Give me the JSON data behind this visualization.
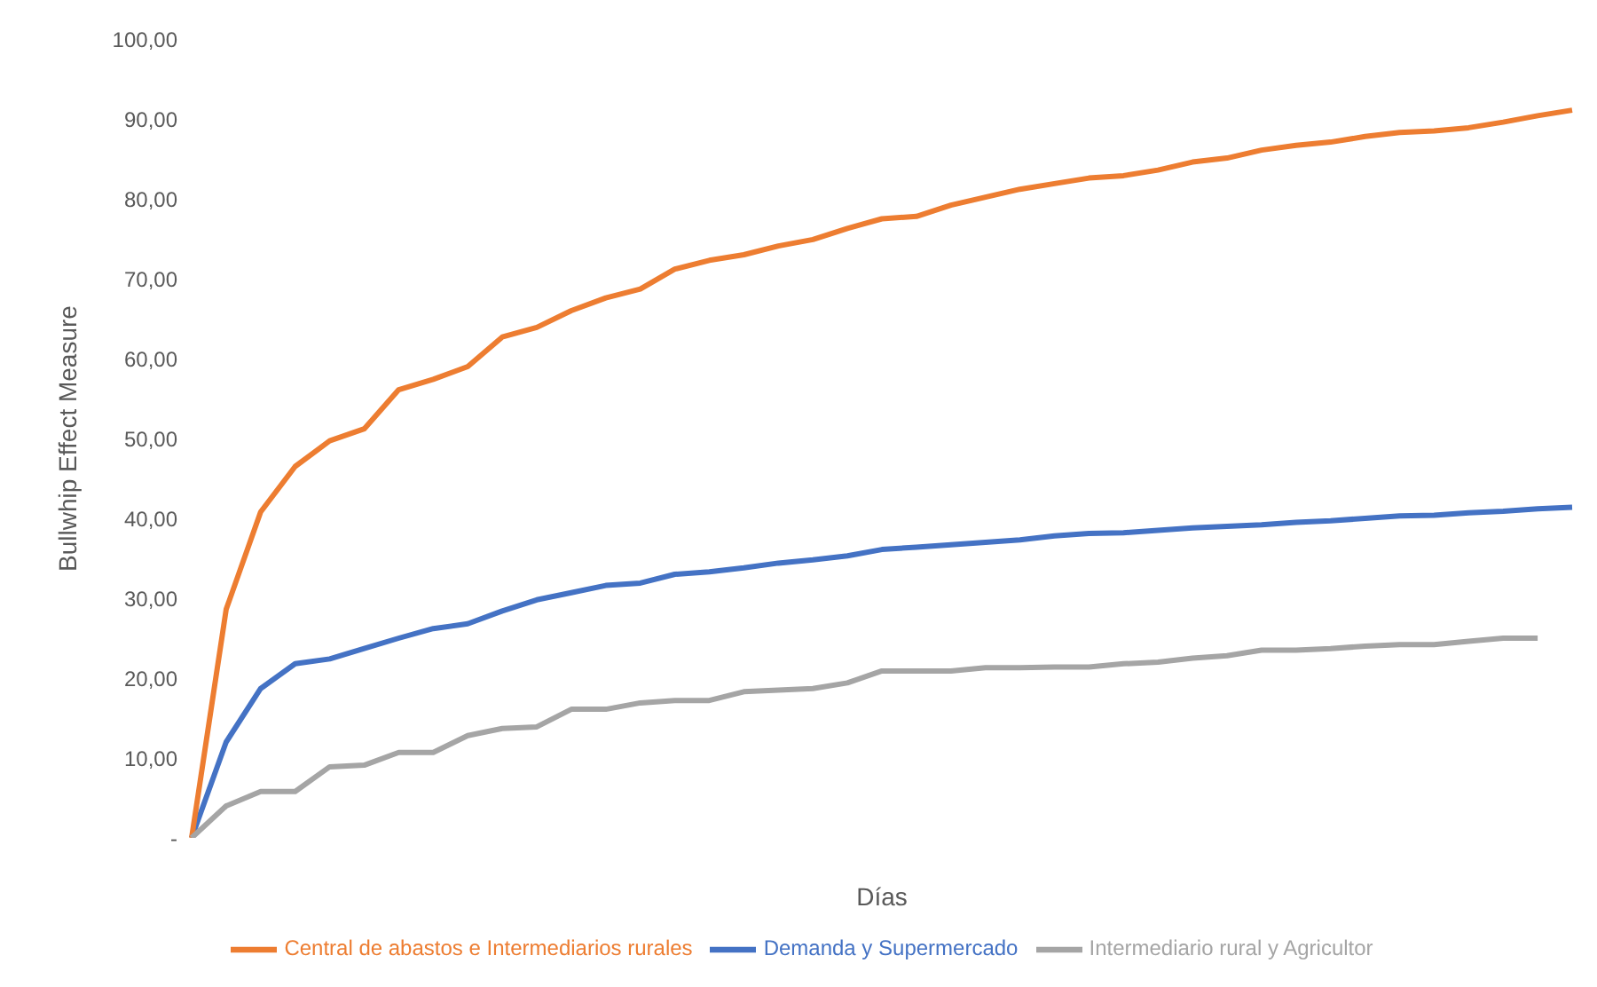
{
  "chart_data": {
    "type": "line",
    "xlabel": "Días",
    "ylabel": "Bullwhip Effect Measure",
    "categories": [
      null,
      null,
      null,
      null,
      null,
      null,
      null,
      null,
      null,
      null,
      null,
      null,
      null,
      null,
      null,
      null,
      null,
      null,
      null,
      null,
      null,
      null,
      null,
      null,
      null,
      null,
      null,
      null,
      null,
      null,
      null,
      null,
      null,
      null,
      null,
      null,
      null,
      null,
      null,
      null,
      null
    ],
    "ylim": [
      0,
      100
    ],
    "yticks": [
      {
        "value": 0,
        "label": "-"
      },
      {
        "value": 10,
        "label": "10,00"
      },
      {
        "value": 20,
        "label": "20,00"
      },
      {
        "value": 30,
        "label": "30,00"
      },
      {
        "value": 40,
        "label": "40,00"
      },
      {
        "value": 50,
        "label": "50,00"
      },
      {
        "value": 60,
        "label": "60,00"
      },
      {
        "value": 70,
        "label": "70,00"
      },
      {
        "value": 80,
        "label": "80,00"
      },
      {
        "value": 90,
        "label": "90,00"
      },
      {
        "value": 100,
        "label": "100,00"
      }
    ],
    "grid": false,
    "legend": "bottom",
    "marker": "none",
    "line_style": "solid",
    "tick_labels": "y",
    "series": [
      {
        "name": "Demanda y Supermercado",
        "color": "#4472c4",
        "values": [
          0,
          12,
          18.7,
          21.8,
          22.4,
          23.7,
          25,
          26.2,
          26.8,
          28.4,
          29.8,
          30.7,
          31.6,
          31.9,
          33,
          33.3,
          33.8,
          34.4,
          34.8,
          35.3,
          36.1,
          36.4,
          36.7,
          37,
          37.3,
          37.8,
          38.1,
          38.2,
          38.5,
          38.8,
          39,
          39.2,
          39.5,
          39.7,
          40,
          40.3,
          40.4,
          40.7,
          40.9,
          41.2,
          41.4
        ]
      },
      {
        "name": "Central de abastos e Intermediarios rurales",
        "color": "#ed7d31",
        "values": [
          0,
          28.6,
          40.8,
          46.5,
          49.7,
          51.2,
          56.1,
          57.4,
          59,
          62.7,
          63.9,
          66,
          67.6,
          68.7,
          71.2,
          72.3,
          73,
          74.1,
          74.9,
          76.3,
          77.5,
          77.8,
          79.2,
          80.2,
          81.2,
          81.9,
          82.6,
          82.9,
          83.6,
          84.6,
          85.1,
          86.1,
          86.7,
          87.1,
          87.8,
          88.3,
          88.5,
          88.9,
          89.6,
          90.4,
          91.1
        ]
      },
      {
        "name": "Intermediario rural y Agricultor",
        "color": "#a5a5a5",
        "values": [
          0,
          4,
          5.8,
          5.8,
          8.9,
          9.1,
          10.7,
          10.7,
          12.8,
          13.7,
          13.9,
          16.1,
          16.1,
          16.9,
          17.2,
          17.2,
          18.3,
          18.5,
          18.7,
          19.4,
          20.9,
          20.9,
          20.9,
          21.3,
          21.3,
          21.4,
          21.4,
          21.8,
          22,
          22.5,
          22.8,
          23.5,
          23.5,
          23.7,
          24,
          24.2,
          24.2,
          24.6,
          25,
          25,
          null
        ]
      }
    ]
  }
}
